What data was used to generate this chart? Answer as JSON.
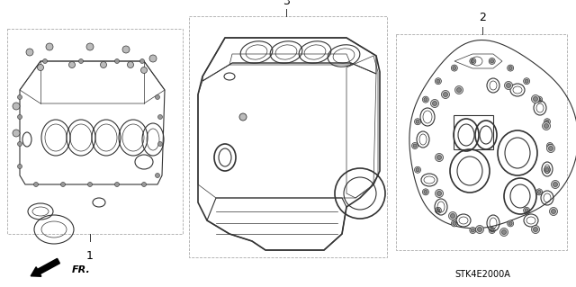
{
  "bg_color": "#ffffff",
  "line_color": "#333333",
  "gray_color": "#888888",
  "label_color": "#000000",
  "part1_label": "1",
  "part2_label": "2",
  "part3_label": "3",
  "catalog_number": "STK4E2000A",
  "fig_width": 6.4,
  "fig_height": 3.19,
  "dpi": 100
}
